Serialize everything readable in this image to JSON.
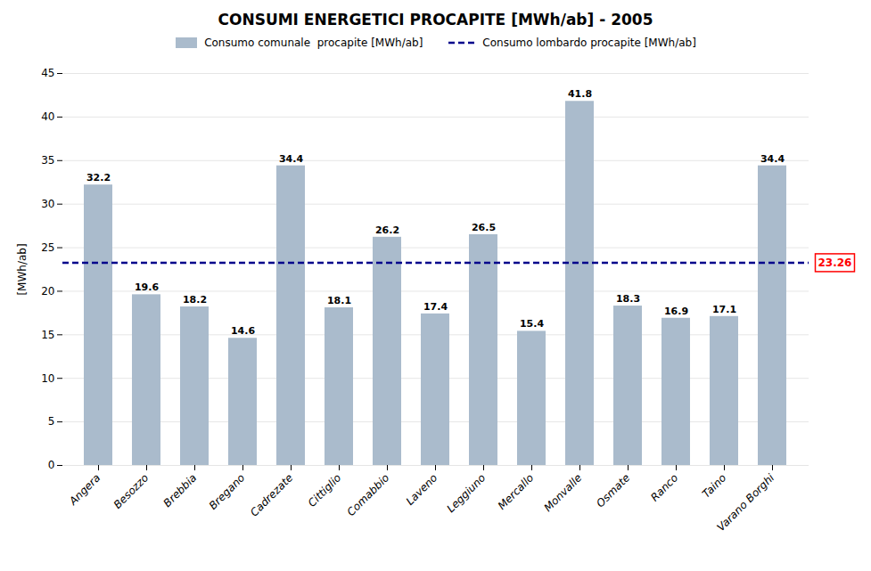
{
  "chart_data": {
    "type": "bar",
    "title": "CONSUMI ENERGETICI PROCAPITE [MWh/ab] - 2005",
    "categories": [
      "Angera",
      "Besozzo",
      "Brebbia",
      "Bregano",
      "Cadrezate",
      "Cittiglio",
      "Comabbio",
      "Laveno",
      "Leggiuno",
      "Mercallo",
      "Monvalle",
      "Osmate",
      "Ranco",
      "Taino",
      "Varano Borghi"
    ],
    "series": [
      {
        "name": "Consumo comunale  procapite [MWh/ab]",
        "color": "#AABBCC",
        "values": [
          32.2,
          19.6,
          18.2,
          14.6,
          34.4,
          18.1,
          26.2,
          17.4,
          26.5,
          15.4,
          41.8,
          18.3,
          16.9,
          17.1,
          34.4
        ]
      }
    ],
    "hlines": [
      {
        "name": "Consumo lombardo procapite [MWh/ab]",
        "value": 23.26,
        "color": "#00008B",
        "line_style": "dashed",
        "label_color": "#FF0000"
      }
    ],
    "ylabel": "[MWh/ab]",
    "ylim": [
      0,
      45
    ],
    "yticks": [
      0,
      5,
      10,
      15,
      20,
      25,
      30,
      35,
      40,
      45
    ],
    "grid": true,
    "data_labels": true,
    "legend": "top"
  }
}
